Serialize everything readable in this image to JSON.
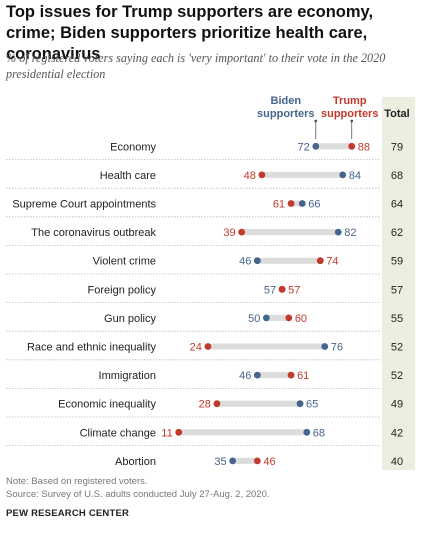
{
  "header": {
    "title": "Top issues for Trump supporters are economy, crime; Biden supporters prioritize health care, coronavirus",
    "subtitle": "% of registered voters saying each is 'very important' to their vote in the 2020 presidential election"
  },
  "chart_data": {
    "type": "dot",
    "categories": [
      "Economy",
      "Health care",
      "Supreme Court appointments",
      "The coronavirus outbreak",
      "Violent crime",
      "Foreign policy",
      "Gun policy",
      "Race and ethnic inequality",
      "Immigration",
      "Economic inequality",
      "Climate change",
      "Abortion"
    ],
    "series": [
      {
        "name": "Biden supporters",
        "color": "#46658c",
        "values": [
          72,
          84,
          66,
          82,
          46,
          57,
          50,
          76,
          46,
          65,
          68,
          35
        ]
      },
      {
        "name": "Trump supporters",
        "color": "#c0392b",
        "values": [
          88,
          48,
          61,
          39,
          74,
          57,
          60,
          24,
          61,
          28,
          11,
          46
        ]
      }
    ],
    "total": {
      "label": "Total",
      "values": [
        79,
        68,
        64,
        62,
        59,
        57,
        55,
        52,
        52,
        49,
        42,
        40
      ]
    },
    "legend": {
      "biden": [
        "Biden",
        "supporters"
      ],
      "trump": [
        "Trump",
        "supporters"
      ],
      "placement": "top-right"
    },
    "colors": {
      "connector": "#dcdcdc",
      "total_column": "#ecefe0",
      "row_divider": "#bbbbbb"
    }
  },
  "footer": {
    "note": "Note: Based on registered voters.",
    "source": "Source: Survey of U.S. adults conducted July 27-Aug. 2, 2020.",
    "brand": "PEW RESEARCH CENTER"
  }
}
